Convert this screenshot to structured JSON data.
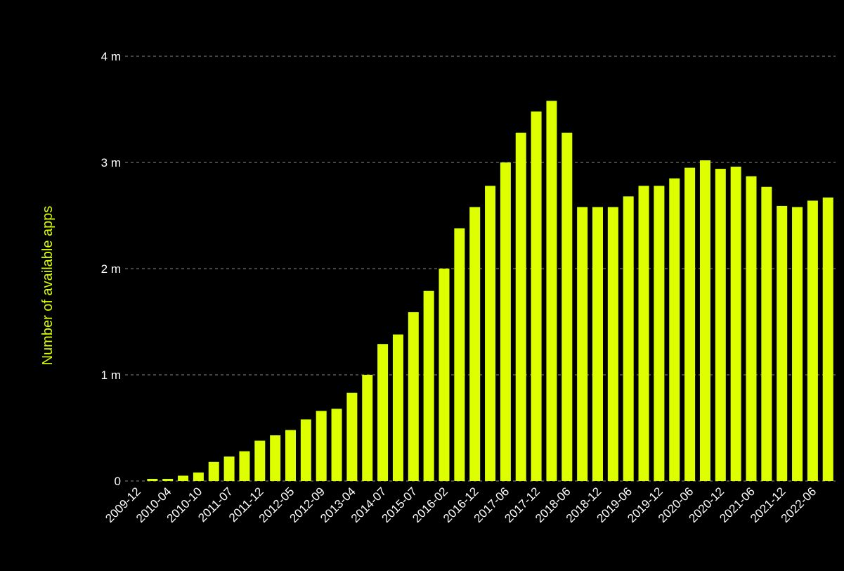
{
  "colors": {
    "background": "#000000",
    "bar": "#DDFF00",
    "axis_label": "#DDFF00",
    "tick_text": "#FFFFFF",
    "grid": "#8A8A8A"
  },
  "chart_data": {
    "type": "bar",
    "title": "",
    "xlabel": "",
    "ylabel": "Number of available apps",
    "ylim": [
      0,
      4
    ],
    "grid": true,
    "legend": "none",
    "y_ticks": [
      {
        "value": 0,
        "label": "0"
      },
      {
        "value": 1,
        "label": "1 m"
      },
      {
        "value": 2,
        "label": "2 m"
      },
      {
        "value": 3,
        "label": "3 m"
      },
      {
        "value": 4,
        "label": "4 m"
      }
    ],
    "x_tick_labels": [
      {
        "index": 0,
        "label": "2009-12"
      },
      {
        "index": 2,
        "label": "2010-04"
      },
      {
        "index": 4,
        "label": "2010-10"
      },
      {
        "index": 6,
        "label": "2011-07"
      },
      {
        "index": 8,
        "label": "2011-12"
      },
      {
        "index": 10,
        "label": "2012-05"
      },
      {
        "index": 12,
        "label": "2012-09"
      },
      {
        "index": 14,
        "label": "2013-04"
      },
      {
        "index": 16,
        "label": "2014-07"
      },
      {
        "index": 18,
        "label": "2015-07"
      },
      {
        "index": 20,
        "label": "2016-02"
      },
      {
        "index": 22,
        "label": "2016-12"
      },
      {
        "index": 24,
        "label": "2017-06"
      },
      {
        "index": 26,
        "label": "2017-12"
      },
      {
        "index": 28,
        "label": "2018-06"
      },
      {
        "index": 30,
        "label": "2018-12"
      },
      {
        "index": 32,
        "label": "2019-06"
      },
      {
        "index": 34,
        "label": "2019-12"
      },
      {
        "index": 36,
        "label": "2020-06"
      },
      {
        "index": 38,
        "label": "2020-12"
      },
      {
        "index": 40,
        "label": "2021-06"
      },
      {
        "index": 42,
        "label": "2021-12"
      },
      {
        "index": 44,
        "label": "2022-06"
      }
    ],
    "values": [
      0.0,
      0.02,
      0.02,
      0.05,
      0.08,
      0.18,
      0.23,
      0.28,
      0.38,
      0.43,
      0.48,
      0.58,
      0.66,
      0.68,
      0.83,
      1.0,
      1.29,
      1.38,
      1.59,
      1.79,
      2.0,
      2.38,
      2.58,
      2.78,
      3.0,
      3.28,
      3.48,
      3.58,
      3.28,
      2.58,
      2.58,
      2.58,
      2.68,
      2.78,
      2.78,
      2.85,
      2.95,
      3.02,
      2.94,
      2.96,
      2.87,
      2.77,
      2.59,
      2.58,
      2.64,
      2.67
    ]
  }
}
